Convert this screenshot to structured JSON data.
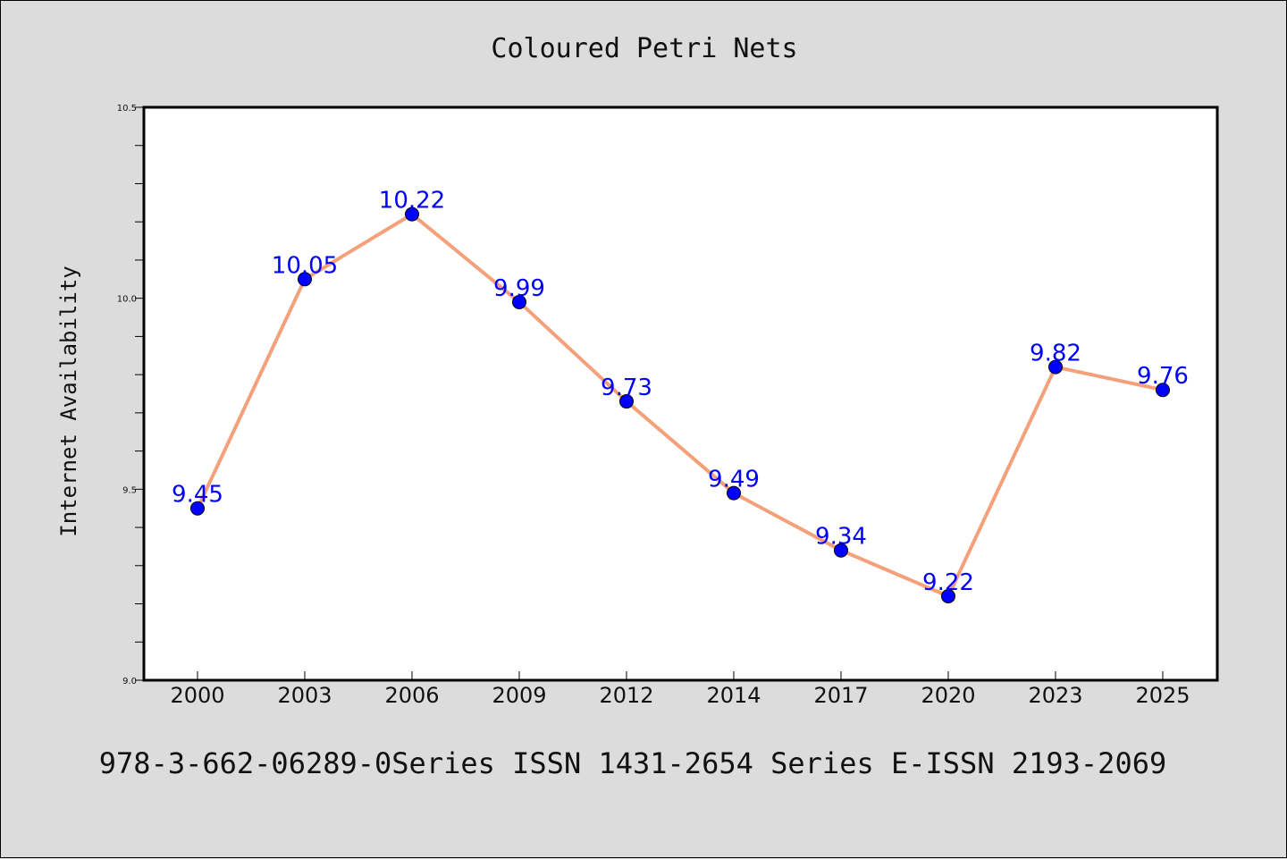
{
  "chart_data": {
    "type": "line",
    "title": "Coloured Petri Nets",
    "xlabel": "",
    "ylabel": "Internet Availability",
    "categories": [
      "2000",
      "2003",
      "2006",
      "2009",
      "2012",
      "2014",
      "2017",
      "2020",
      "2023",
      "2025"
    ],
    "series": [
      {
        "values": [
          9.45,
          10.05,
          10.22,
          9.99,
          9.73,
          9.49,
          9.34,
          9.22,
          9.82,
          9.76
        ]
      }
    ],
    "data_labels": [
      "9.45",
      "10.05",
      "10.22",
      "9.99",
      "9.73",
      "9.49",
      "9.34",
      "9.22",
      "9.82",
      "9.76"
    ],
    "ylim": [
      9.0,
      10.5
    ],
    "yticks": [
      "9.0",
      "9.5",
      "10.0",
      "10.5"
    ],
    "grid": false,
    "line_color": "#f4a07a",
    "marker_color": "#0000ff",
    "label_color": "#0000ff"
  },
  "footer_text": "978-3-662-06289-0Series ISSN 1431-2654 Series E-ISSN 2193-2069"
}
